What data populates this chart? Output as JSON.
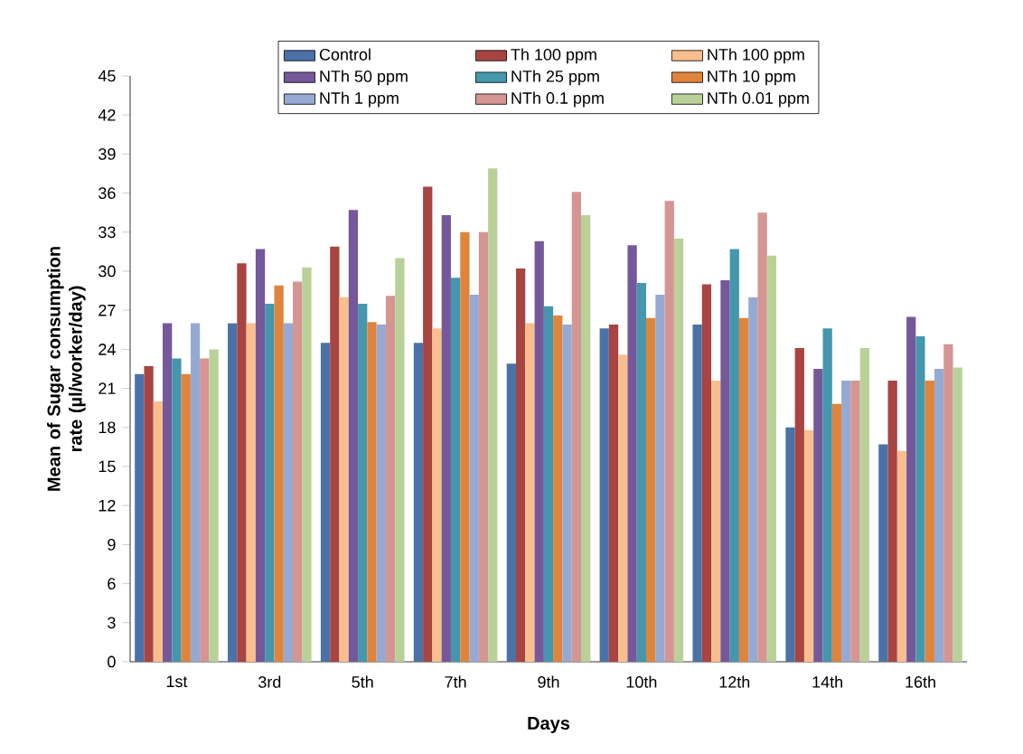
{
  "chart_data": {
    "type": "bar",
    "xlabel": "Days",
    "ylabel": "Mean of Sugar consumption rate (µl/worker/day)",
    "categories": [
      "1st",
      "3rd",
      "5th",
      "7th",
      "9th",
      "10th",
      "12th",
      "14th",
      "16th"
    ],
    "ylim": [
      0,
      45
    ],
    "yticks": [
      0,
      3,
      6,
      9,
      12,
      15,
      18,
      21,
      24,
      27,
      30,
      33,
      36,
      39,
      42,
      45
    ],
    "grid": false,
    "legend": "top",
    "series": [
      {
        "name": "Control",
        "color": "#4a72a8",
        "values": [
          22.1,
          26.0,
          24.5,
          24.5,
          22.9,
          25.6,
          25.9,
          18.0,
          16.7
        ]
      },
      {
        "name": "Th 100 ppm",
        "color": "#a84442",
        "values": [
          22.7,
          30.6,
          31.9,
          36.5,
          30.2,
          25.9,
          29.0,
          24.1,
          21.6
        ]
      },
      {
        "name": "NTh 100 ppm",
        "color": "#f9be8d",
        "values": [
          20.0,
          26.0,
          28.0,
          25.6,
          26.0,
          23.6,
          21.6,
          17.8,
          16.2
        ]
      },
      {
        "name": "NTh 50 ppm",
        "color": "#75589a",
        "values": [
          26.0,
          31.7,
          34.7,
          34.3,
          32.3,
          32.0,
          29.3,
          22.5,
          26.5
        ]
      },
      {
        "name": "NTh 25 ppm",
        "color": "#4497ad",
        "values": [
          23.3,
          27.5,
          27.5,
          29.5,
          27.3,
          29.1,
          31.7,
          25.6,
          25.0
        ]
      },
      {
        "name": "NTh 10 ppm",
        "color": "#e0843c",
        "values": [
          22.1,
          28.9,
          26.1,
          33.0,
          26.6,
          26.4,
          26.4,
          19.8,
          21.6
        ]
      },
      {
        "name": "NTh 1 ppm",
        "color": "#94aad2",
        "values": [
          26.0,
          26.0,
          25.9,
          28.2,
          25.9,
          28.2,
          28.0,
          21.6,
          22.5
        ]
      },
      {
        "name": "NTh 0.1 ppm",
        "color": "#d59593",
        "values": [
          23.3,
          29.2,
          28.1,
          33.0,
          36.1,
          35.4,
          34.5,
          21.6,
          24.4
        ]
      },
      {
        "name": "NTh 0.01 ppm",
        "color": "#b9d198",
        "values": [
          24.0,
          30.3,
          31.0,
          37.9,
          34.3,
          32.5,
          31.2,
          24.1,
          22.6
        ]
      }
    ]
  }
}
